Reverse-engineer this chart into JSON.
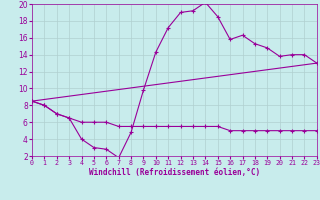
{
  "xlabel": "Windchill (Refroidissement éolien,°C)",
  "xlim": [
    0,
    23
  ],
  "ylim": [
    2,
    20
  ],
  "xticks": [
    0,
    1,
    2,
    3,
    4,
    5,
    6,
    7,
    8,
    9,
    10,
    11,
    12,
    13,
    14,
    15,
    16,
    17,
    18,
    19,
    20,
    21,
    22,
    23
  ],
  "yticks": [
    2,
    4,
    6,
    8,
    10,
    12,
    14,
    16,
    18,
    20
  ],
  "bg_color": "#c8ecec",
  "line_color": "#990099",
  "grid_color": "#b0d0d0",
  "line1_x": [
    0,
    1,
    2,
    3,
    4,
    5,
    6,
    7,
    8,
    9,
    10,
    11,
    12,
    13,
    14,
    15,
    16,
    17,
    18,
    19,
    20,
    21,
    22,
    23
  ],
  "line1_y": [
    8.5,
    8.0,
    7.0,
    6.5,
    4.0,
    3.0,
    2.8,
    1.8,
    4.8,
    9.8,
    14.3,
    17.2,
    19.0,
    19.2,
    20.2,
    18.5,
    15.8,
    16.3,
    15.3,
    14.8,
    13.8,
    14.0,
    14.0,
    13.0
  ],
  "line2_x": [
    0,
    23
  ],
  "line2_y": [
    8.5,
    13.0
  ],
  "line3_x": [
    0,
    1,
    2,
    3,
    4,
    5,
    6,
    7,
    8,
    9,
    10,
    11,
    12,
    13,
    14,
    15,
    16,
    17,
    18,
    19,
    20,
    21,
    22,
    23
  ],
  "line3_y": [
    8.5,
    8.0,
    7.0,
    6.5,
    6.0,
    6.0,
    6.0,
    5.5,
    5.5,
    5.5,
    5.5,
    5.5,
    5.5,
    5.5,
    5.5,
    5.5,
    5.0,
    5.0,
    5.0,
    5.0,
    5.0,
    5.0,
    5.0,
    5.0
  ]
}
